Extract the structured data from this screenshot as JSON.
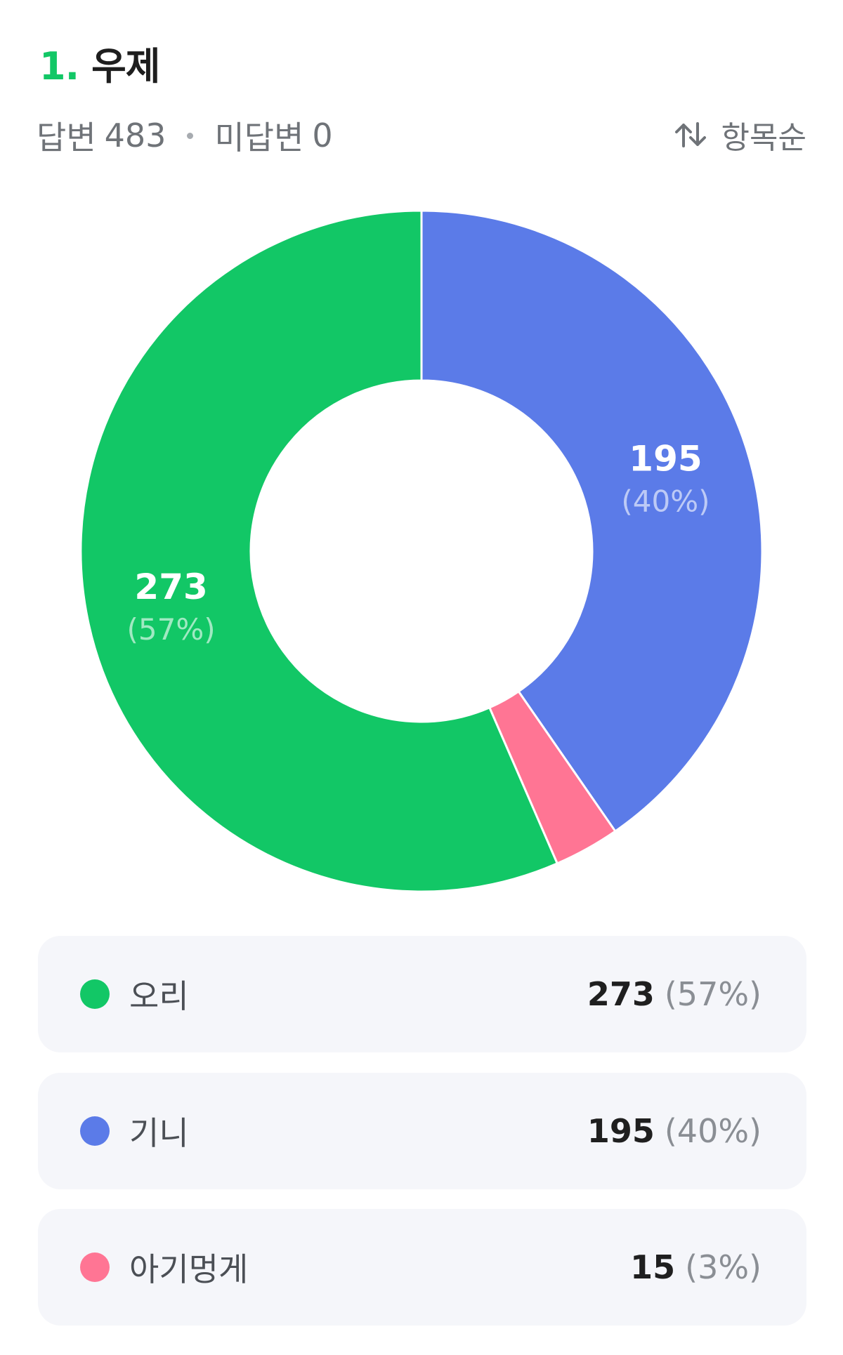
{
  "question": {
    "number": "1.",
    "title": "우제"
  },
  "stats": {
    "answered_label": "답변",
    "answered_count": "483",
    "unanswered_label": "미답변",
    "unanswered_count": "0"
  },
  "sort": {
    "label": "항목순",
    "icon": "sort-arrows-icon"
  },
  "colors": {
    "accent": "#12c766",
    "row_bg": "#f5f6fa"
  },
  "chart_data": {
    "type": "pie",
    "style": "donut",
    "total": 483,
    "slices": [
      {
        "label": "오리",
        "value": 273,
        "percent": "57%",
        "color": "#12c766",
        "chart_label_value": "273",
        "chart_label_pct": "(57%)"
      },
      {
        "label": "기니",
        "value": 195,
        "percent": "40%",
        "color": "#5b7be8",
        "chart_label_value": "195",
        "chart_label_pct": "(40%)"
      },
      {
        "label": "아기멍게",
        "value": 15,
        "percent": "3%",
        "color": "#ff7594",
        "chart_label_value": "",
        "chart_label_pct": ""
      }
    ]
  },
  "legend": [
    {
      "label": "오리",
      "count": "273",
      "pct": "(57%)",
      "color": "#12c766"
    },
    {
      "label": "기니",
      "count": "195",
      "pct": "(40%)",
      "color": "#5b7be8"
    },
    {
      "label": "아기멍게",
      "count": "15",
      "pct": "(3%)",
      "color": "#ff7594"
    }
  ]
}
